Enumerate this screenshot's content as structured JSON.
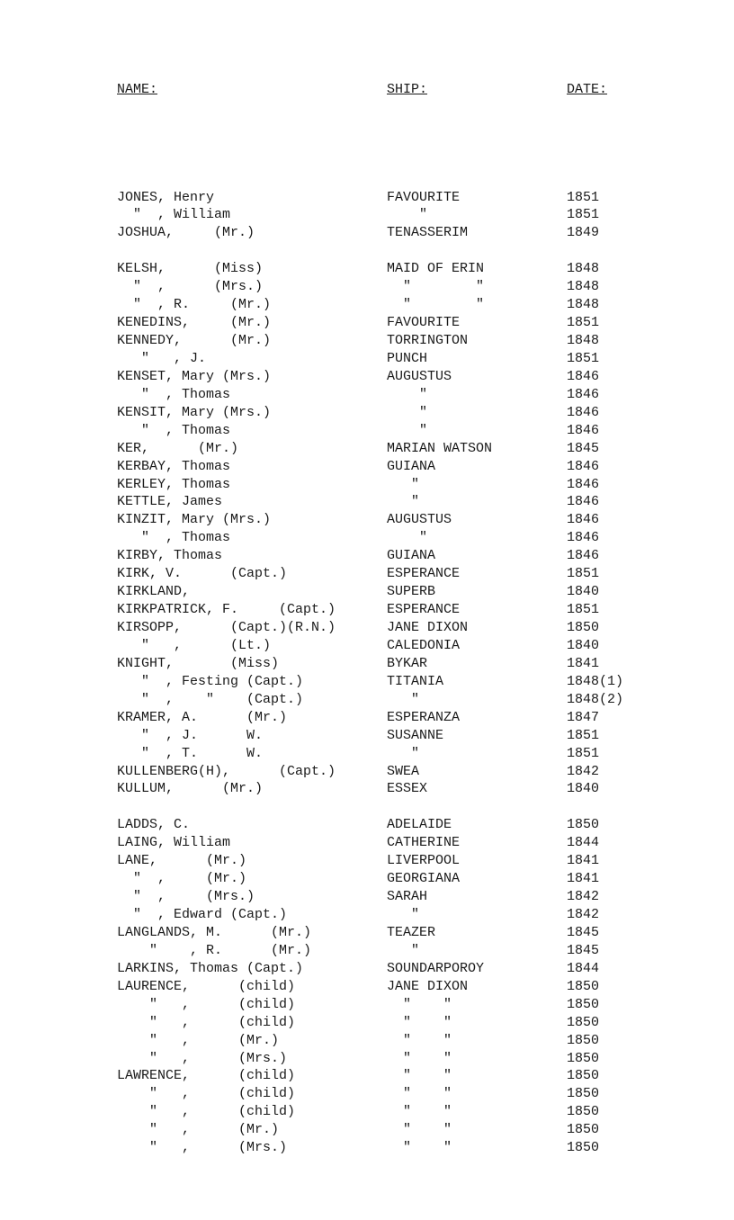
{
  "headers": {
    "name": "NAME:",
    "ship": "SHIP:",
    "date": "DATE:"
  },
  "rows": [
    {
      "name": "JONES, Henry",
      "ship": "FAVOURITE",
      "date": "1851"
    },
    {
      "name": "  \"  , William",
      "ship": "    \"",
      "date": "1851"
    },
    {
      "name": "JOSHUA,     (Mr.)",
      "ship": "TENASSERIM",
      "date": "1849"
    },
    {
      "gap": true
    },
    {
      "name": "KELSH,      (Miss)",
      "ship": "MAID OF ERIN",
      "date": "1848"
    },
    {
      "name": "  \"  ,      (Mrs.)",
      "ship": "  \"        \"",
      "date": "1848"
    },
    {
      "name": "  \"  , R.     (Mr.)",
      "ship": "  \"        \"",
      "date": "1848"
    },
    {
      "name": "KENEDINS,     (Mr.)",
      "ship": "FAVOURITE",
      "date": "1851"
    },
    {
      "name": "KENNEDY,      (Mr.)",
      "ship": "TORRINGTON",
      "date": "1848"
    },
    {
      "name": "   \"   , J.",
      "ship": "PUNCH",
      "date": "1851"
    },
    {
      "name": "KENSET, Mary (Mrs.)",
      "ship": "AUGUSTUS",
      "date": "1846"
    },
    {
      "name": "   \"  , Thomas",
      "ship": "    \"",
      "date": "1846"
    },
    {
      "name": "KENSIT, Mary (Mrs.)",
      "ship": "    \"",
      "date": "1846"
    },
    {
      "name": "   \"  , Thomas",
      "ship": "    \"",
      "date": "1846"
    },
    {
      "name": "KER,      (Mr.)",
      "ship": "MARIAN WATSON",
      "date": "1845"
    },
    {
      "name": "KERBAY, Thomas",
      "ship": "GUIANA",
      "date": "1846"
    },
    {
      "name": "KERLEY, Thomas",
      "ship": "   \"",
      "date": "1846"
    },
    {
      "name": "KETTLE, James",
      "ship": "   \"",
      "date": "1846"
    },
    {
      "name": "KINZIT, Mary (Mrs.)",
      "ship": "AUGUSTUS",
      "date": "1846"
    },
    {
      "name": "   \"  , Thomas",
      "ship": "    \"",
      "date": "1846"
    },
    {
      "name": "KIRBY, Thomas",
      "ship": "GUIANA",
      "date": "1846"
    },
    {
      "name": "KIRK, V.      (Capt.)",
      "ship": "ESPERANCE",
      "date": "1851"
    },
    {
      "name": "KIRKLAND,",
      "ship": "SUPERB",
      "date": "1840"
    },
    {
      "name": "KIRKPATRICK, F.     (Capt.)",
      "ship": "ESPERANCE",
      "date": "1851"
    },
    {
      "name": "KIRSOPP,      (Capt.)(R.N.)",
      "ship": "JANE DIXON",
      "date": "1850"
    },
    {
      "name": "   \"   ,      (Lt.)",
      "ship": "CALEDONIA",
      "date": "1840"
    },
    {
      "name": "KNIGHT,       (Miss)",
      "ship": "BYKAR",
      "date": "1841"
    },
    {
      "name": "   \"  , Festing (Capt.)",
      "ship": "TITANIA",
      "date": "1848(1)"
    },
    {
      "name": "   \"  ,    \"    (Capt.)",
      "ship": "   \"",
      "date": "1848(2)"
    },
    {
      "name": "KRAMER, A.      (Mr.)",
      "ship": "ESPERANZA",
      "date": "1847"
    },
    {
      "name": "   \"  , J.      W.",
      "ship": "SUSANNE",
      "date": "1851"
    },
    {
      "name": "   \"  , T.      W.",
      "ship": "   \"",
      "date": "1851"
    },
    {
      "name": "KULLENBERG(H),      (Capt.)",
      "ship": "SWEA",
      "date": "1842"
    },
    {
      "name": "KULLUM,      (Mr.)",
      "ship": "ESSEX",
      "date": "1840"
    },
    {
      "gap": true
    },
    {
      "name": "LADDS, C.",
      "ship": "ADELAIDE",
      "date": "1850"
    },
    {
      "name": "LAING, William",
      "ship": "CATHERINE",
      "date": "1844"
    },
    {
      "name": "LANE,      (Mr.)",
      "ship": "LIVERPOOL",
      "date": "1841"
    },
    {
      "name": "  \"  ,     (Mr.)",
      "ship": "GEORGIANA",
      "date": "1841"
    },
    {
      "name": "  \"  ,     (Mrs.)",
      "ship": "SARAH",
      "date": "1842"
    },
    {
      "name": "  \"  , Edward (Capt.)",
      "ship": "   \"",
      "date": "1842"
    },
    {
      "name": "LANGLANDS, M.      (Mr.)",
      "ship": "TEAZER",
      "date": "1845"
    },
    {
      "name": "    \"    , R.      (Mr.)",
      "ship": "   \"",
      "date": "1845"
    },
    {
      "name": "LARKINS, Thomas (Capt.)",
      "ship": "SOUNDARPOROY",
      "date": "1844"
    },
    {
      "name": "LAURENCE,      (child)",
      "ship": "JANE DIXON",
      "date": "1850"
    },
    {
      "name": "    \"   ,      (child)",
      "ship": "  \"    \"",
      "date": "1850"
    },
    {
      "name": "    \"   ,      (child)",
      "ship": "  \"    \"",
      "date": "1850"
    },
    {
      "name": "    \"   ,      (Mr.)",
      "ship": "  \"    \"",
      "date": "1850"
    },
    {
      "name": "    \"   ,      (Mrs.)",
      "ship": "  \"    \"",
      "date": "1850"
    },
    {
      "name": "LAWRENCE,      (child)",
      "ship": "  \"    \"",
      "date": "1850"
    },
    {
      "name": "    \"   ,      (child)",
      "ship": "  \"    \"",
      "date": "1850"
    },
    {
      "name": "    \"   ,      (child)",
      "ship": "  \"    \"",
      "date": "1850"
    },
    {
      "name": "    \"   ,      (Mr.)",
      "ship": "  \"    \"",
      "date": "1850"
    },
    {
      "name": "    \"   ,      (Mrs.)",
      "ship": "  \"    \"",
      "date": "1850"
    }
  ]
}
